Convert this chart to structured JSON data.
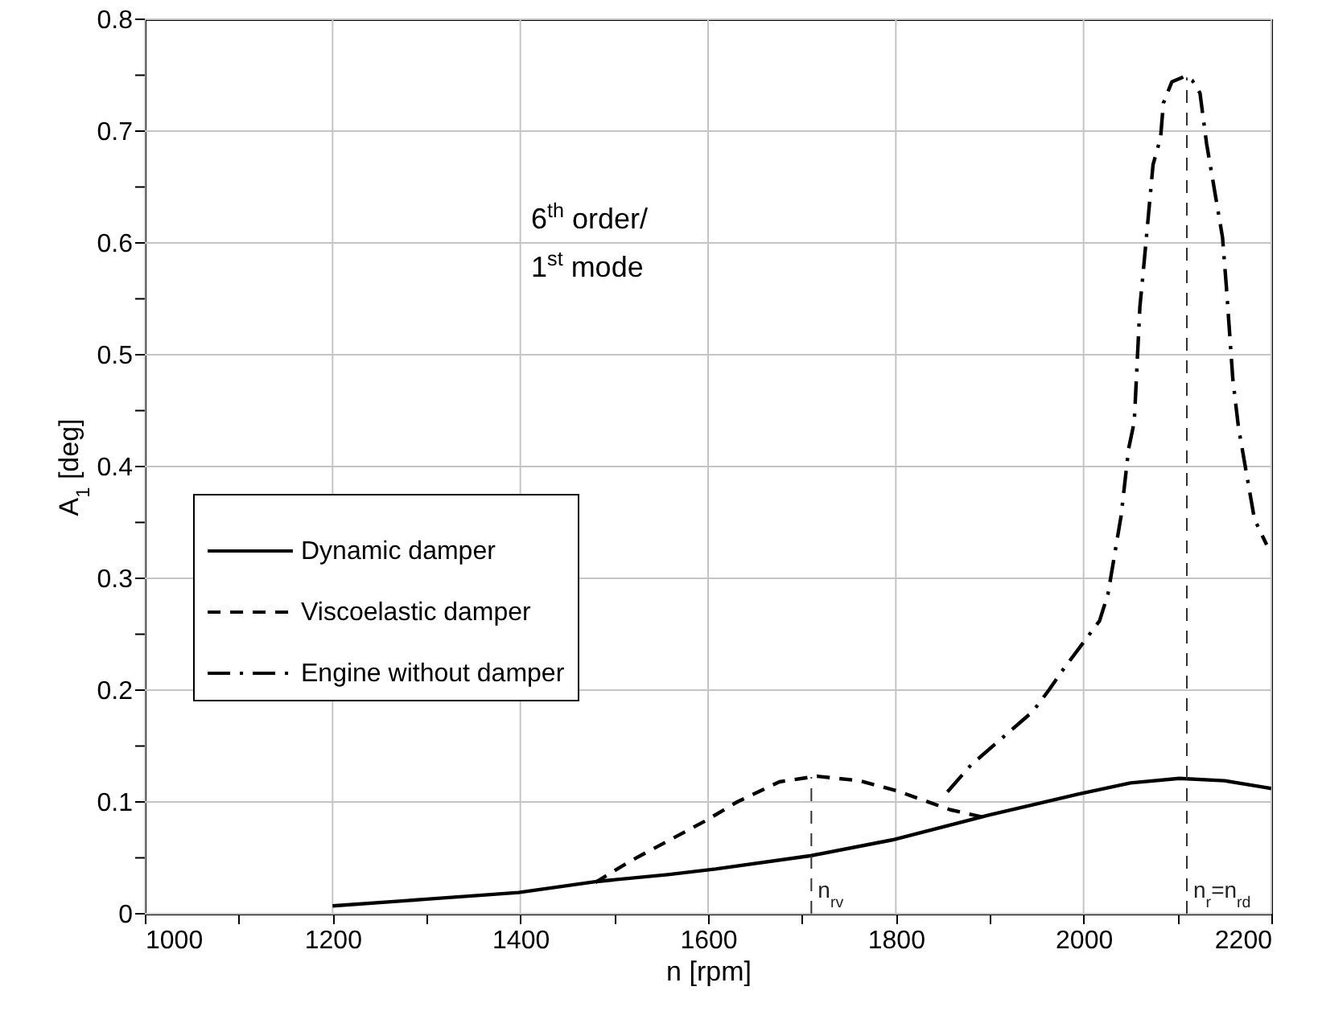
{
  "chart_data": {
    "type": "line",
    "xlabel": "n [rpm]",
    "ylabel": "A$_{1}$ [deg]",
    "xlim": [
      1000,
      2200
    ],
    "ylim": [
      0,
      0.8
    ],
    "xticks": [
      1000,
      {
        "value": 1100,
        "label": null
      },
      1200,
      {
        "value": 1300,
        "label": null
      },
      1400,
      {
        "value": 1500,
        "label": null
      },
      1600,
      {
        "value": 1700,
        "label": null
      },
      1800,
      {
        "value": 1900,
        "label": null
      },
      2000,
      {
        "value": 2100,
        "label": null
      },
      2200
    ],
    "yticks": [
      0,
      {
        "value": 0.05,
        "label": null
      },
      0.1,
      {
        "value": 0.15,
        "label": null
      },
      0.2,
      {
        "value": 0.25,
        "label": null
      },
      0.3,
      {
        "value": 0.35,
        "label": null
      },
      0.4,
      {
        "value": 0.45,
        "label": null
      },
      0.5,
      {
        "value": 0.55,
        "label": null
      },
      0.6,
      {
        "value": 0.65,
        "label": null
      },
      0.7,
      {
        "value": 0.75,
        "label": null
      },
      0.8
    ],
    "grid": true,
    "legend": "left",
    "series": [
      {
        "name": "Dynamic damper",
        "color": "#000000",
        "line_style": "solid",
        "x": [
          1200,
          1300,
          1398,
          1483,
          1557,
          1608,
          1710,
          1796,
          1898,
          1994,
          2050,
          2102,
          2150,
          2193,
          2200
        ],
        "values": [
          0.007,
          0.013,
          0.019,
          0.029,
          0.035,
          0.04,
          0.052,
          0.066,
          0.088,
          0.107,
          0.117,
          0.121,
          0.119,
          0.113,
          0.112
        ]
      },
      {
        "name": "Viscoelastic damper",
        "color": "#000000",
        "line_style": "dashed",
        "x": [
          1480,
          1517,
          1557,
          1597,
          1631,
          1676,
          1716,
          1761,
          1801,
          1858,
          1900
        ],
        "values": [
          0.028,
          0.047,
          0.065,
          0.083,
          0.1,
          0.118,
          0.123,
          0.119,
          0.11,
          0.093,
          0.085
        ]
      },
      {
        "name": "Engine without damper",
        "color": "#000000",
        "line_style": "dashdot",
        "x": [
          1855,
          1880,
          1946,
          1963,
          1977,
          2017,
          2026,
          2040,
          2048,
          2054,
          2060,
          2063,
          2074,
          2082,
          2085,
          2094,
          2108,
          2116,
          2124,
          2131,
          2148,
          2152,
          2159,
          2165,
          2182,
          2195
        ],
        "values": [
          0.109,
          0.133,
          0.181,
          0.2,
          0.217,
          0.262,
          0.286,
          0.356,
          0.416,
          0.44,
          0.543,
          0.569,
          0.67,
          0.694,
          0.725,
          0.744,
          0.749,
          0.745,
          0.734,
          0.689,
          0.605,
          0.562,
          0.478,
          0.435,
          0.353,
          0.33
        ]
      }
    ],
    "ref_lines": [
      {
        "axis": "x",
        "value": 1710,
        "label": "n$_{rv}$",
        "line_style": "dashed"
      },
      {
        "axis": "x",
        "value": 2110,
        "label": "n$_{r}$=n$_{rd}$",
        "line_style": "dashed"
      }
    ],
    "annotations": [
      "6$^{th}$ order/",
      "1$^{st}$ mode"
    ]
  }
}
